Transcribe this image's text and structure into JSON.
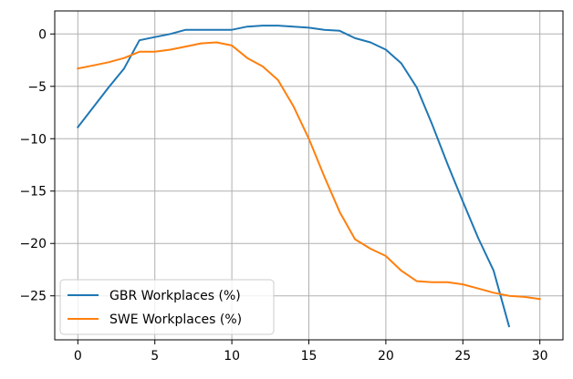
{
  "chart_data": {
    "type": "line",
    "title": "",
    "xlabel": "",
    "ylabel": "",
    "xlim": [
      -1.5,
      31.5
    ],
    "ylim": [
      -29.2,
      2.2
    ],
    "xticks": [
      0,
      5,
      10,
      15,
      20,
      25,
      30
    ],
    "yticks": [
      0,
      -5,
      -10,
      -15,
      -20,
      -25
    ],
    "xtick_labels": [
      "0",
      "5",
      "10",
      "15",
      "20",
      "25",
      "30"
    ],
    "ytick_labels": [
      "0",
      "−5",
      "−10",
      "−15",
      "−20",
      "−25"
    ],
    "grid": true,
    "legend_position": "lower-left",
    "series": [
      {
        "name": "GBR Workplaces (%)",
        "color": "#1f77b4",
        "x": [
          0,
          1,
          2,
          3,
          4,
          5,
          6,
          7,
          8,
          9,
          10,
          11,
          12,
          13,
          14,
          15,
          16,
          17,
          18,
          19,
          20,
          21,
          22,
          23,
          24,
          25,
          26,
          27,
          28
        ],
        "values": [
          -8.9,
          -7.0,
          -5.1,
          -3.3,
          -0.6,
          -0.3,
          0.0,
          0.4,
          0.4,
          0.4,
          0.4,
          0.7,
          0.8,
          0.8,
          0.7,
          0.6,
          0.4,
          0.3,
          -0.4,
          -0.8,
          -1.5,
          -2.8,
          -5.1,
          -8.6,
          -12.4,
          -16.0,
          -19.5,
          -22.6,
          -27.9
        ]
      },
      {
        "name": "SWE Workplaces (%)",
        "color": "#ff7f0e",
        "x": [
          0,
          1,
          2,
          3,
          4,
          5,
          6,
          7,
          8,
          9,
          10,
          11,
          12,
          13,
          14,
          15,
          16,
          17,
          18,
          19,
          20,
          21,
          22,
          23,
          24,
          25,
          26,
          27,
          28,
          29,
          30
        ],
        "values": [
          -3.3,
          -3.0,
          -2.7,
          -2.3,
          -1.7,
          -1.7,
          -1.5,
          -1.2,
          -0.9,
          -0.8,
          -1.1,
          -2.3,
          -3.1,
          -4.4,
          -6.9,
          -10.0,
          -13.6,
          -17.0,
          -19.6,
          -20.5,
          -21.2,
          -22.6,
          -23.6,
          -23.7,
          -23.7,
          -23.9,
          -24.3,
          -24.7,
          -25.0,
          -25.1,
          -25.3
        ]
      }
    ]
  }
}
